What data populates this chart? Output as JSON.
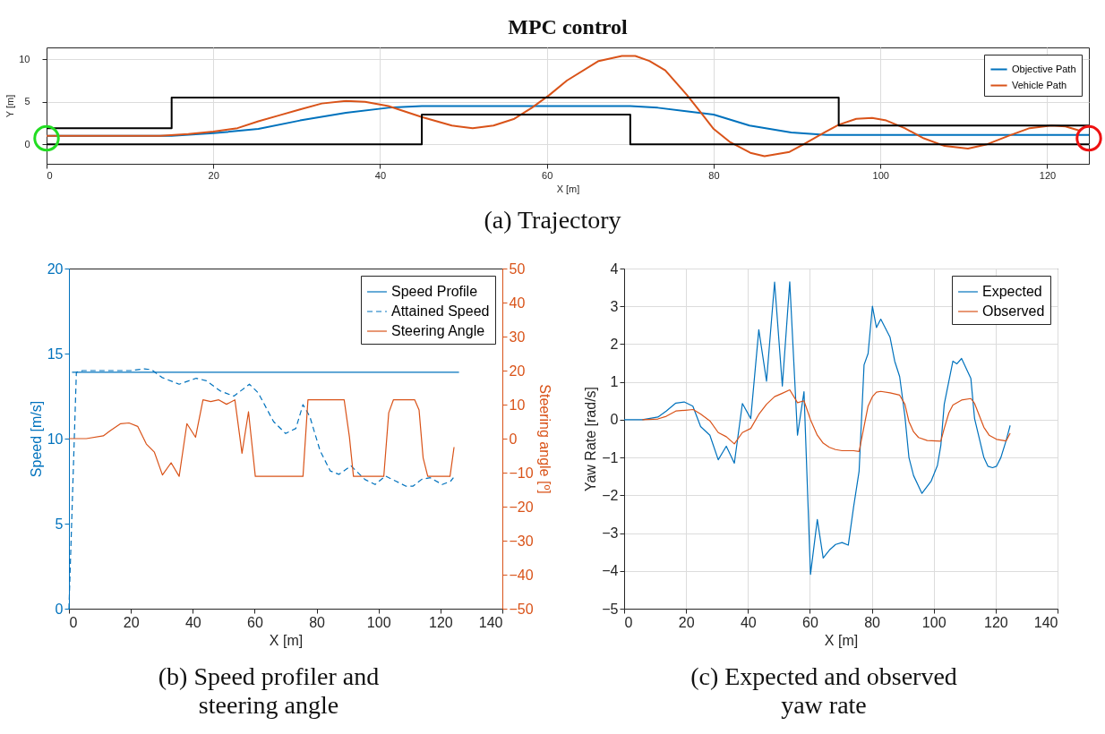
{
  "chart_data": [
    {
      "type": "line",
      "title": "MPC control",
      "xlabel": "X [m]",
      "ylabel": "Y [m]",
      "xlim": [
        0,
        125
      ],
      "ylim": [
        -2.3,
        11.4
      ],
      "xticks": [
        0,
        20,
        40,
        60,
        80,
        100,
        120
      ],
      "yticks": [
        0,
        5,
        10
      ],
      "grid": true,
      "legend": "top right",
      "annotations": [
        "(a) Trajectory"
      ],
      "series": [
        {
          "name": "Objective Path",
          "color": "#0072bd",
          "x": [
            0,
            15,
            20,
            25.4,
            30.4,
            35.9,
            41,
            45,
            70,
            73.3,
            80,
            84.3,
            89.3,
            93.5,
            125
          ],
          "values": [
            1,
            1,
            1.3,
            1.8,
            2.8,
            3.7,
            4.3,
            4.5,
            4.5,
            4.3,
            3.5,
            2.2,
            1.4,
            1.1,
            1.1
          ]
        },
        {
          "name": "Vehicle Path",
          "color": "#d95319",
          "x": [
            0,
            13.6,
            17,
            20,
            22.9,
            25.4,
            27.9,
            30.4,
            33,
            35.9,
            38.2,
            41,
            45,
            48.6,
            51.1,
            53.6,
            56.1,
            58.2,
            60.3,
            62.4,
            66.2,
            69,
            70.6,
            72.3,
            74.2,
            76.8,
            78.5,
            80,
            81.9,
            84.4,
            86.1,
            89.1,
            90.8,
            93.3,
            95,
            97.1,
            99,
            100.7,
            102.9,
            105.2,
            107.7,
            110.5,
            112.8,
            115.4,
            117.9,
            120.5,
            122.2,
            123.9
          ],
          "values": [
            1,
            1,
            1.2,
            1.5,
            1.9,
            2.7,
            3.4,
            4.1,
            4.8,
            5.1,
            5.0,
            4.5,
            3.2,
            2.2,
            1.9,
            2.2,
            3.0,
            4.3,
            5.8,
            7.5,
            9.8,
            10.4,
            10.4,
            9.8,
            8.7,
            5.8,
            3.7,
            1.8,
            0.3,
            -1.0,
            -1.4,
            -0.9,
            0,
            1.4,
            2.3,
            3.0,
            3.1,
            2.8,
            1.9,
            0.7,
            -0.2,
            -0.5,
            0,
            1.0,
            1.9,
            2.2,
            2.1,
            1.6
          ]
        },
        {
          "color": "#000000",
          "x": [
            0,
            15,
            15,
            95,
            95,
            125
          ],
          "values": [
            1.9,
            1.9,
            5.5,
            5.5,
            2.2,
            2.2
          ]
        },
        {
          "color": "#000000",
          "x": [
            0,
            45,
            45,
            70,
            70,
            125
          ],
          "values": [
            0,
            0,
            3.5,
            3.5,
            0,
            0
          ]
        },
        {
          "type": "scatter",
          "marker": "circle",
          "color": "#22dd22",
          "x": [
            0
          ],
          "values": [
            0.7
          ]
        },
        {
          "type": "scatter",
          "marker": "circle",
          "color": "#ee1111",
          "x": [
            125
          ],
          "values": [
            0.7
          ]
        }
      ]
    },
    {
      "type": "line",
      "xlabel": "X [m]",
      "ylabel": "Speed [m/s]",
      "y2label": "Steering angle [º]",
      "xlim": [
        0,
        140
      ],
      "ylim": [
        0,
        20
      ],
      "y2lim": [
        -50,
        50
      ],
      "xticks": [
        0,
        20,
        40,
        60,
        80,
        100,
        120,
        140
      ],
      "yticks": [
        0,
        5,
        10,
        15,
        20
      ],
      "y2ticks": [
        -50,
        -40,
        -30,
        -20,
        -10,
        0,
        10,
        20,
        30,
        40,
        50
      ],
      "legend": "top right",
      "annotations": [
        "(b) Speed profiler and steering angle"
      ],
      "series": [
        {
          "name": "Speed Profile",
          "color": "#0072bd",
          "x": [
            1,
            126
          ],
          "values": [
            13.9,
            13.9
          ]
        },
        {
          "name": "Attained Speed",
          "color": "#0072bd",
          "line_style": "dashed",
          "x": [
            0,
            2.4,
            4.4,
            20,
            24.4,
            26.7,
            30,
            35.6,
            41.1,
            44.4,
            48.9,
            53.3,
            58.3,
            61.1,
            66.1,
            70,
            73.3,
            75.6,
            77.8,
            81.1,
            84.4,
            87.2,
            91.1,
            95.6,
            98.9,
            102.2,
            105.6,
            108.9,
            111.1,
            113.9,
            116.7,
            120.6,
            123.3,
            124.2
          ],
          "values": [
            0,
            13.9,
            14.0,
            14.0,
            14.1,
            14.05,
            13.6,
            13.2,
            13.55,
            13.4,
            12.8,
            12.5,
            13.2,
            12.7,
            11.0,
            10.3,
            10.6,
            12.0,
            11.3,
            9.3,
            8.1,
            7.9,
            8.4,
            7.6,
            7.3,
            7.8,
            7.5,
            7.2,
            7.2,
            7.6,
            7.7,
            7.3,
            7.5,
            7.7
          ]
        },
        {
          "name": "Steering Angle",
          "color": "#d95319",
          "axis": "y2",
          "x": [
            0,
            5.6,
            11.1,
            13.3,
            16.7,
            19.4,
            22.2,
            25,
            27.6,
            30.2,
            33,
            35.6,
            38.1,
            40.9,
            43.3,
            45.8,
            48.4,
            50.9,
            53.6,
            55.9,
            58,
            60.2,
            75.6,
            77.2,
            88.9,
            90.6,
            91.9,
            101.7,
            103.3,
            104.8,
            111.7,
            113.1,
            114.4,
            115.9,
            123.1,
            124.4
          ],
          "values": [
            0,
            0,
            0.8,
            2.3,
            4.4,
            4.6,
            3.6,
            -1.6,
            -4,
            -10.7,
            -7.1,
            -11.1,
            4.4,
            0.4,
            11.4,
            10.9,
            11.4,
            10.1,
            11.4,
            -4.3,
            7.9,
            -11.1,
            -11.1,
            11.4,
            11.4,
            0.5,
            -11.1,
            -11.1,
            7.6,
            11.4,
            11.4,
            8.4,
            -5.6,
            -11.1,
            -11.1,
            -2.5
          ]
        }
      ]
    },
    {
      "type": "line",
      "xlabel": "X [m]",
      "ylabel": "Yaw Rate [rad/s]",
      "xlim": [
        0,
        140
      ],
      "ylim": [
        -5,
        4
      ],
      "xticks": [
        0,
        20,
        40,
        60,
        80,
        100,
        120,
        140
      ],
      "yticks": [
        -5,
        -4,
        -3,
        -2,
        -1,
        0,
        1,
        2,
        3,
        4
      ],
      "grid": true,
      "legend": "top right",
      "annotations": [
        "(c) Expected and observed yaw rate"
      ],
      "series": [
        {
          "name": "Expected",
          "color": "#0072bd",
          "x": [
            0,
            5.9,
            10.9,
            13.6,
            16.7,
            19.4,
            22.2,
            24.7,
            27.7,
            30.4,
            33,
            35.6,
            38.2,
            40.9,
            43.5,
            46,
            48.6,
            51.1,
            53.5,
            56,
            58.1,
            60.2,
            62.4,
            64.3,
            66.3,
            68.3,
            70.4,
            72.4,
            74.1,
            75.9,
            77.5,
            78.8,
            80.2,
            81.5,
            82.9,
            85.9,
            87.4,
            89,
            90.7,
            92,
            93.5,
            96.2,
            99.2,
            101.2,
            102.3,
            103.4,
            106.2,
            107.5,
            109,
            112,
            113.2,
            116.2,
            117.5,
            119,
            120.3,
            121.7,
            123.4,
            124.7
          ],
          "values": [
            0,
            0,
            0.07,
            0.23,
            0.44,
            0.47,
            0.36,
            -0.18,
            -0.41,
            -1.06,
            -0.7,
            -1.15,
            0.43,
            0.03,
            2.38,
            1.02,
            3.64,
            0.89,
            3.65,
            -0.41,
            0.74,
            -4.09,
            -2.64,
            -3.66,
            -3.45,
            -3.3,
            -3.25,
            -3.32,
            -2.32,
            -1.36,
            1.45,
            1.75,
            3.0,
            2.44,
            2.66,
            2.18,
            1.55,
            1.14,
            0.09,
            -1.0,
            -1.48,
            -1.95,
            -1.62,
            -1.21,
            -0.68,
            0.41,
            1.55,
            1.48,
            1.62,
            1.09,
            0.03,
            -1.0,
            -1.23,
            -1.27,
            -1.23,
            -1.0,
            -0.55,
            -0.15
          ]
        },
        {
          "name": "Observed",
          "color": "#d95319",
          "x": [
            5.9,
            10.9,
            13.6,
            16.7,
            19.7,
            22.3,
            24.7,
            27.7,
            30.4,
            33,
            35.6,
            38.2,
            40.9,
            43.5,
            46,
            48.6,
            51.1,
            53.5,
            56,
            58.1,
            60.2,
            62.4,
            64.3,
            66.3,
            68.3,
            70.4,
            74.1,
            75.9,
            77.5,
            78.8,
            80.2,
            81.5,
            82.9,
            85.9,
            89,
            90.7,
            92,
            93.5,
            95.1,
            97.9,
            102.3,
            103.4,
            104.9,
            106.2,
            109,
            112,
            113.2,
            116.2,
            117.9,
            120.3,
            123.4,
            124.7
          ],
          "values": [
            0,
            0.02,
            0.09,
            0.23,
            0.25,
            0.27,
            0.15,
            -0.03,
            -0.34,
            -0.45,
            -0.64,
            -0.34,
            -0.23,
            0.14,
            0.41,
            0.61,
            0.7,
            0.79,
            0.45,
            0.5,
            0,
            -0.41,
            -0.62,
            -0.73,
            -0.79,
            -0.82,
            -0.82,
            -0.84,
            -0.18,
            0.36,
            0.61,
            0.73,
            0.75,
            0.71,
            0.65,
            0.41,
            -0.05,
            -0.32,
            -0.47,
            -0.55,
            -0.57,
            -0.23,
            0.18,
            0.39,
            0.52,
            0.56,
            0.43,
            -0.2,
            -0.41,
            -0.52,
            -0.56,
            -0.36
          ]
        }
      ]
    }
  ]
}
